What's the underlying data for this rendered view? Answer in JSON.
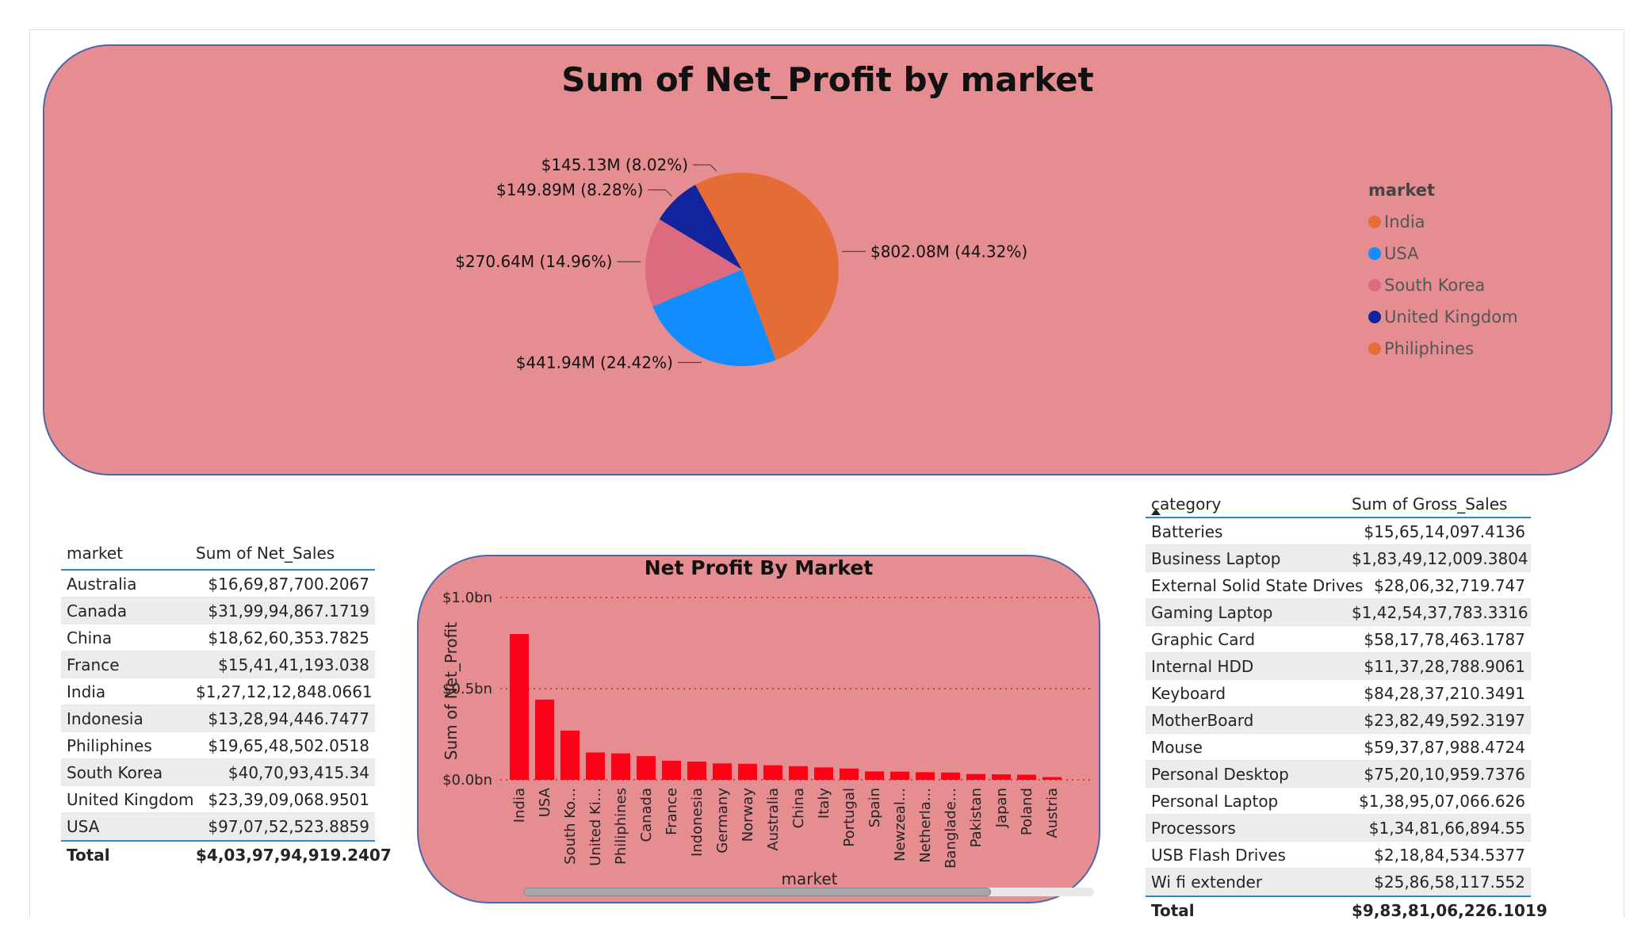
{
  "pie_chart": {
    "title": "Sum of Net_Profit by market",
    "legend_title": "market",
    "legend": [
      {
        "name": "India",
        "color": "#e66c37"
      },
      {
        "name": "USA",
        "color": "#118dff"
      },
      {
        "name": "South Korea",
        "color": "#dd6b7f"
      },
      {
        "name": "United Kingdom",
        "color": "#12239e"
      },
      {
        "name": "Philiphines",
        "color": "#e66c37"
      }
    ]
  },
  "market_table": {
    "headers": [
      "market",
      "Sum of Net_Sales"
    ],
    "rows": [
      [
        "Australia",
        "$16,69,87,700.2067"
      ],
      [
        "Canada",
        "$31,99,94,867.1719"
      ],
      [
        "China",
        "$18,62,60,353.7825"
      ],
      [
        "France",
        "$15,41,41,193.038"
      ],
      [
        "India",
        "$1,27,12,12,848.0661"
      ],
      [
        "Indonesia",
        "$13,28,94,446.7477"
      ],
      [
        "Philiphines",
        "$19,65,48,502.0518"
      ],
      [
        "South Korea",
        "$40,70,93,415.34"
      ],
      [
        "United Kingdom",
        "$23,39,09,068.9501"
      ],
      [
        "USA",
        "$97,07,52,523.8859"
      ]
    ],
    "total_label": "Total",
    "total_value": "$4,03,97,94,919.2407"
  },
  "category_table": {
    "headers": [
      "category",
      "Sum of Gross_Sales"
    ],
    "rows": [
      [
        "Batteries",
        "$15,65,14,097.4136"
      ],
      [
        "Business Laptop",
        "$1,83,49,12,009.3804"
      ],
      [
        "External Solid State Drives",
        "$28,06,32,719.747"
      ],
      [
        "Gaming Laptop",
        "$1,42,54,37,783.3316"
      ],
      [
        "Graphic Card",
        "$58,17,78,463.1787"
      ],
      [
        "Internal HDD",
        "$11,37,28,788.9061"
      ],
      [
        "Keyboard",
        "$84,28,37,210.3491"
      ],
      [
        "MotherBoard",
        "$23,82,49,592.3197"
      ],
      [
        "Mouse",
        "$59,37,87,988.4724"
      ],
      [
        "Personal Desktop",
        "$75,20,10,959.7376"
      ],
      [
        "Personal Laptop",
        "$1,38,95,07,066.626"
      ],
      [
        "Processors",
        "$1,34,81,66,894.55"
      ],
      [
        "USB Flash Drives",
        "$2,18,84,534.5377"
      ],
      [
        "Wi fi extender",
        "$25,86,58,117.552"
      ]
    ],
    "total_label": "Total",
    "total_value": "$9,83,81,06,226.1019"
  },
  "bar_chart": {
    "title": "Net Profit By Market",
    "xlabel": "market",
    "ylabel": "Sum of Net_Profit",
    "y_ticks": [
      "$1.0bn",
      "$0.5bn",
      "$0.0bn"
    ],
    "bar_color": "#ff0016"
  },
  "chart_data": [
    {
      "type": "pie",
      "title": "Sum of Net_Profit by market",
      "categories": [
        "India",
        "USA",
        "South Korea",
        "United Kingdom",
        "Philiphines"
      ],
      "values": [
        802.08,
        441.94,
        270.64,
        149.89,
        145.13
      ],
      "unit": "$M",
      "percent": [
        44.32,
        24.42,
        14.96,
        8.28,
        8.02
      ],
      "labels": [
        "$802.08M (44.32%)",
        "$441.94M (24.42%)",
        "$270.64M (14.96%)",
        "$149.89M (8.28%)",
        "$145.13M (8.02%)"
      ],
      "colors": [
        "#e66c37",
        "#118dff",
        "#dd6b7f",
        "#12239e",
        "#e66c37"
      ],
      "legend": "right"
    },
    {
      "type": "bar",
      "title": "Net Profit By Market",
      "xlabel": "market",
      "ylabel": "Sum of Net_Profit",
      "categories": [
        "India",
        "USA",
        "South Ko...",
        "United Ki...",
        "Philiphines",
        "Canada",
        "France",
        "Indonesia",
        "Germany",
        "Norway",
        "Australia",
        "China",
        "Italy",
        "Portugal",
        "Spain",
        "Newzeal...",
        "Netherla...",
        "Banglade...",
        "Pakistan",
        "Japan",
        "Poland",
        "Austria"
      ],
      "values": [
        0.8,
        0.44,
        0.27,
        0.15,
        0.145,
        0.13,
        0.105,
        0.1,
        0.09,
        0.088,
        0.08,
        0.075,
        0.068,
        0.062,
        0.046,
        0.045,
        0.042,
        0.04,
        0.032,
        0.03,
        0.028,
        0.015
      ],
      "ylim": [
        0,
        1.0
      ],
      "y_unit": "$bn",
      "grid": true
    }
  ]
}
